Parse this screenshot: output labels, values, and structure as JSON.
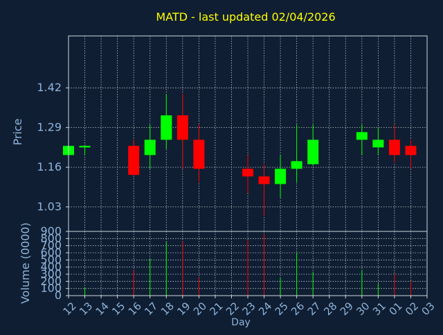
{
  "chart_data": {
    "type": "candlestick",
    "title": "MATD - last updated 02/04/2026",
    "xlabel": "Day",
    "price_axis": {
      "ylabel": "Price",
      "yticks": [
        1.03,
        1.16,
        1.29,
        1.42
      ],
      "ylim": [
        0.95,
        1.59
      ]
    },
    "volume_axis": {
      "ylabel": "Volume (0000)",
      "yticks": [
        0,
        100,
        200,
        300,
        400,
        500,
        600,
        700,
        800,
        900
      ],
      "ylim": [
        0,
        900
      ]
    },
    "x_ticks": [
      "12",
      "13",
      "14",
      "15",
      "16",
      "17",
      "18",
      "19",
      "20",
      "21",
      "22",
      "23",
      "24",
      "25",
      "26",
      "27",
      "28",
      "29",
      "30",
      "31",
      "01",
      "02",
      "03"
    ],
    "candles": [
      {
        "day": "12",
        "open": 1.2,
        "high": 1.23,
        "low": 1.2,
        "close": 1.23,
        "volume": 0
      },
      {
        "day": "13",
        "open": 1.225,
        "high": 1.23,
        "low": 1.2,
        "close": 1.23,
        "volume": 120
      },
      {
        "day": "16",
        "open": 1.23,
        "high": 1.25,
        "low": 1.13,
        "close": 1.135,
        "volume": 350
      },
      {
        "day": "17",
        "open": 1.2,
        "high": 1.3,
        "low": 1.155,
        "close": 1.25,
        "volume": 520
      },
      {
        "day": "18",
        "open": 1.25,
        "high": 1.4,
        "low": 1.22,
        "close": 1.33,
        "volume": 750
      },
      {
        "day": "19",
        "open": 1.33,
        "high": 1.4,
        "low": 1.155,
        "close": 1.25,
        "volume": 760
      },
      {
        "day": "20",
        "open": 1.25,
        "high": 1.3,
        "low": 1.11,
        "close": 1.155,
        "volume": 250
      },
      {
        "day": "23",
        "open": 1.155,
        "high": 1.2,
        "low": 1.075,
        "close": 1.13,
        "volume": 780
      },
      {
        "day": "24",
        "open": 1.13,
        "high": 1.17,
        "low": 1.0,
        "close": 1.105,
        "volume": 860
      },
      {
        "day": "25",
        "open": 1.105,
        "high": 1.2,
        "low": 1.06,
        "close": 1.155,
        "volume": 250
      },
      {
        "day": "26",
        "open": 1.155,
        "high": 1.3,
        "low": 1.11,
        "close": 1.18,
        "volume": 600
      },
      {
        "day": "27",
        "open": 1.17,
        "high": 1.3,
        "low": 1.165,
        "close": 1.25,
        "volume": 330
      },
      {
        "day": "30",
        "open": 1.25,
        "high": 1.3,
        "low": 1.2,
        "close": 1.275,
        "volume": 360
      },
      {
        "day": "31",
        "open": 1.225,
        "high": 1.29,
        "low": 1.2,
        "close": 1.25,
        "volume": 170
      },
      {
        "day": "01",
        "open": 1.25,
        "high": 1.3,
        "low": 1.175,
        "close": 1.2,
        "volume": 300
      },
      {
        "day": "02",
        "open": 1.23,
        "high": 1.25,
        "low": 1.155,
        "close": 1.2,
        "volume": 200
      }
    ],
    "grid": true,
    "colors": {
      "background": "#0f1e32",
      "up": "#00ff00",
      "down": "#ff0000",
      "title": "#ffff00",
      "axis_text": "#8fb4dc",
      "frame": "#cfd8e0",
      "grid": "#c0c8d0"
    }
  }
}
